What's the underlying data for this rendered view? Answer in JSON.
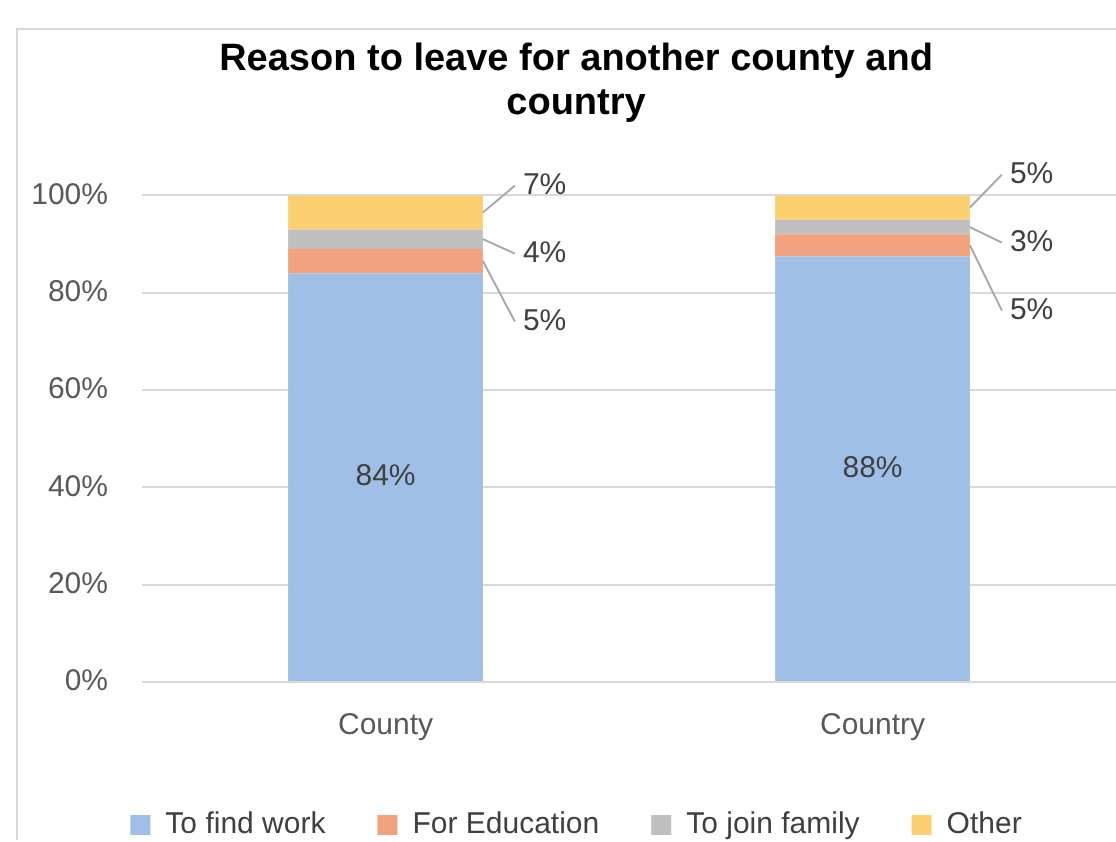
{
  "chart_data": {
    "type": "bar",
    "title": "Reason to leave for another county and country",
    "categories": [
      "County",
      "Country"
    ],
    "stacked": true,
    "series": [
      {
        "name": "To find work",
        "color": "#9fbfe6",
        "values": [
          84,
          87.5
        ],
        "value_labels": [
          "84%",
          "88%"
        ]
      },
      {
        "name": "For Education",
        "color": "#f2a27e",
        "values": [
          5,
          4.5
        ],
        "value_labels": [
          "5%",
          "5%"
        ]
      },
      {
        "name": "To join family",
        "color": "#c0c0c0",
        "values": [
          4,
          3
        ],
        "value_labels": [
          "4%",
          "3%"
        ]
      },
      {
        "name": "Other",
        "color": "#fcd070",
        "values": [
          7,
          5
        ],
        "value_labels": [
          "7%",
          "5%"
        ]
      }
    ],
    "ylim": [
      0,
      100
    ],
    "yticks": [
      {
        "value": 0,
        "label": "0%"
      },
      {
        "value": 20,
        "label": "20%"
      },
      {
        "value": 40,
        "label": "40%"
      },
      {
        "value": 60,
        "label": "60%"
      },
      {
        "value": 80,
        "label": "80%"
      },
      {
        "value": 100,
        "label": "100%"
      }
    ],
    "grid": "y",
    "legend": "bottom"
  }
}
